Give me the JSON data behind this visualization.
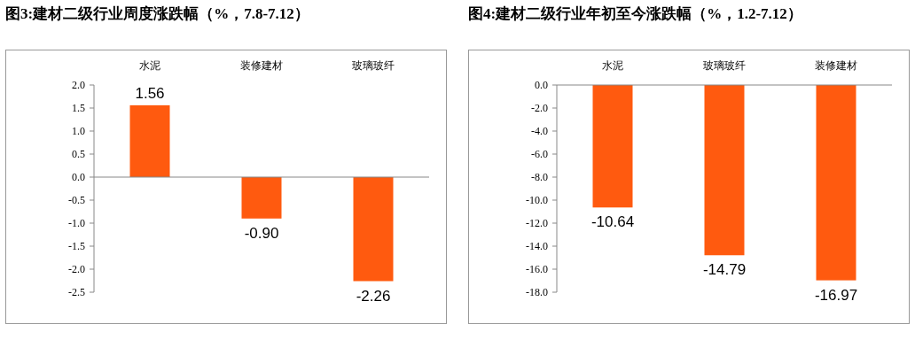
{
  "chart_data": [
    {
      "type": "bar",
      "title": "图3:建材二级行业周度涨跌幅（%，7.8-7.12）",
      "categories": [
        "水泥",
        "装修建材",
        "玻璃玻纤"
      ],
      "series": [
        {
          "color": "#ff5a0f",
          "values": [
            1.56,
            -0.9,
            -2.26
          ],
          "value_labels": [
            "1.56",
            "-0.90",
            "-2.26"
          ]
        }
      ],
      "ylim": [
        -2.5,
        2.0
      ],
      "yticks": [
        {
          "value": -2.5,
          "label": "-2.5"
        },
        {
          "value": -2,
          "label": "-2.0"
        },
        {
          "value": -1.5,
          "label": "-1.5"
        },
        {
          "value": -1,
          "label": "-1.0"
        },
        {
          "value": -0.5,
          "label": "-0.5"
        },
        {
          "value": 0,
          "label": "0.0"
        },
        {
          "value": 0.5,
          "label": "0.5"
        },
        {
          "value": 1,
          "label": "1.0"
        },
        {
          "value": 1.5,
          "label": "1.5"
        },
        {
          "value": 2,
          "label": "2.0"
        }
      ]
    },
    {
      "type": "bar",
      "title": "图4:建材二级行业年初至今涨跌幅（%，1.2-7.12）",
      "categories": [
        "水泥",
        "玻璃玻纤",
        "装修建材"
      ],
      "series": [
        {
          "color": "#ff5a0f",
          "values": [
            -10.64,
            -14.79,
            -16.97
          ],
          "value_labels": [
            "-10.64",
            "-14.79",
            "-16.97"
          ]
        }
      ],
      "ylim": [
        -18,
        0
      ],
      "yticks": [
        {
          "value": -18,
          "label": "-18.0"
        },
        {
          "value": -16,
          "label": "-16.0"
        },
        {
          "value": -14,
          "label": "-14.0"
        },
        {
          "value": -12,
          "label": "-12.0"
        },
        {
          "value": -10,
          "label": "-10.0"
        },
        {
          "value": -8,
          "label": "-8.0"
        },
        {
          "value": -6,
          "label": "-6.0"
        },
        {
          "value": -4,
          "label": "-4.0"
        },
        {
          "value": -2,
          "label": "-2.0"
        },
        {
          "value": 0,
          "label": "0.0"
        }
      ]
    }
  ]
}
